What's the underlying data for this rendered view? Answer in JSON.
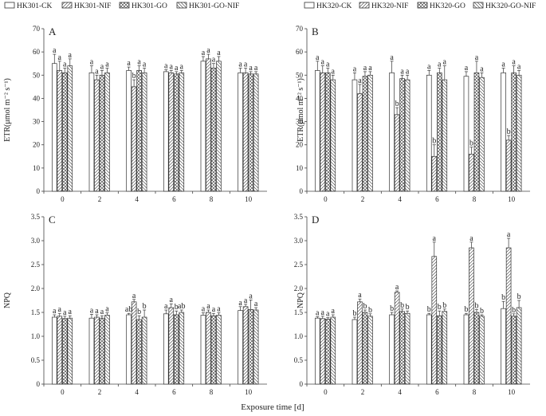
{
  "x_title": "Exposure time [d]",
  "legends": [
    [
      "HK301-CK",
      "HK301-NIF",
      "HK301-GO",
      "HK301-GO-NIF"
    ],
    [
      "HK320-CK",
      "HK320-NIF",
      "HK320-GO",
      "HK320-GO-NIF"
    ]
  ],
  "chart_data": [
    {
      "type": "bar",
      "panel": "A",
      "ylabel": "ETR(μmol m⁻² s⁻¹)",
      "categories": [
        "0",
        "2",
        "4",
        "6",
        "8",
        "10"
      ],
      "ylim": [
        0,
        70
      ],
      "yticks": [
        0,
        10,
        20,
        30,
        40,
        50,
        60,
        70
      ],
      "series": [
        {
          "name": "HK301-CK",
          "values": [
            55,
            51,
            52,
            51.5,
            56,
            51
          ],
          "err": [
            4,
            3,
            1.5,
            0.8,
            2,
            2
          ],
          "letters": [
            "a",
            "a",
            "a",
            "a",
            "a",
            "a"
          ]
        },
        {
          "name": "HK301-NIF",
          "values": [
            52,
            48,
            45,
            51,
            57,
            51
          ],
          "err": [
            4,
            2,
            3,
            1,
            2,
            2
          ],
          "letters": [
            "a",
            "a",
            "b",
            "a",
            "a",
            "a"
          ]
        },
        {
          "name": "HK301-GO",
          "values": [
            51,
            50,
            52,
            50.5,
            53,
            50.5
          ],
          "err": [
            2,
            2,
            2,
            1,
            2,
            1
          ],
          "letters": [
            "a",
            "a",
            "a",
            "a",
            "a",
            "a"
          ]
        },
        {
          "name": "HK301-GO-NIF",
          "values": [
            54,
            51,
            51,
            51,
            56,
            50.5
          ],
          "err": [
            3,
            2,
            2,
            1,
            2,
            1
          ],
          "letters": [
            "a",
            "a",
            "a",
            "a",
            "a",
            "a"
          ]
        }
      ]
    },
    {
      "type": "bar",
      "panel": "B",
      "ylabel": "ETR(μmol m⁻² s⁻¹)",
      "categories": [
        "0",
        "2",
        "4",
        "6",
        "8",
        "10"
      ],
      "ylim": [
        0,
        70
      ],
      "yticks": [
        0,
        10,
        20,
        30,
        40,
        50,
        60,
        70
      ],
      "series": [
        {
          "name": "HK320-CK",
          "values": [
            52,
            48,
            51,
            50,
            49.5,
            51
          ],
          "err": [
            4,
            3,
            5,
            2,
            2,
            2
          ],
          "letters": [
            "a",
            "a",
            "a",
            "a",
            "a",
            "a"
          ]
        },
        {
          "name": "HK320-NIF",
          "values": [
            51,
            42,
            33,
            15,
            16,
            22
          ],
          "err": [
            3,
            4,
            3,
            5,
            3,
            2
          ],
          "letters": [
            "a",
            "a",
            "b",
            "b",
            "b",
            "b"
          ]
        },
        {
          "name": "HK320-GO",
          "values": [
            51,
            49.5,
            48.5,
            51,
            51,
            51
          ],
          "err": [
            2,
            2,
            1.5,
            2,
            5,
            3
          ],
          "letters": [
            "a",
            "a",
            "a",
            "a",
            "a",
            "a"
          ]
        },
        {
          "name": "HK320-GO-NIF",
          "values": [
            48,
            50,
            48,
            48,
            49,
            50
          ],
          "err": [
            2,
            1.5,
            2,
            6,
            2,
            2
          ],
          "letters": [
            "a",
            "a",
            "a",
            "a",
            "a",
            "a"
          ]
        }
      ]
    },
    {
      "type": "bar",
      "panel": "C",
      "ylabel": "NPQ",
      "categories": [
        "0",
        "2",
        "4",
        "6",
        "8",
        "10"
      ],
      "ylim": [
        0,
        3.5
      ],
      "yticks": [
        0,
        0.5,
        1.0,
        1.5,
        2.0,
        2.5,
        3.0,
        3.5
      ],
      "series": [
        {
          "name": "HK301-CK",
          "values": [
            1.4,
            1.38,
            1.45,
            1.47,
            1.44,
            1.54
          ],
          "err": [
            0.05,
            0.08,
            0.03,
            0.08,
            0.05,
            0.08
          ],
          "letters": [
            "a",
            "a",
            "ab",
            "a",
            "a",
            "a"
          ]
        },
        {
          "name": "HK301-NIF",
          "values": [
            1.42,
            1.4,
            1.72,
            1.6,
            1.5,
            1.62
          ],
          "err": [
            0.06,
            0.05,
            0.05,
            0.08,
            0.05,
            0.05
          ],
          "letters": [
            "a",
            "a",
            "a",
            "a",
            "a",
            "a"
          ]
        },
        {
          "name": "HK301-GO",
          "values": [
            1.37,
            1.38,
            1.35,
            1.45,
            1.43,
            1.56
          ],
          "err": [
            0.05,
            0.05,
            0.08,
            0.08,
            0.05,
            0.2
          ],
          "letters": [
            "a",
            "a",
            "b",
            "b",
            "a",
            "a"
          ]
        },
        {
          "name": "HK301-GO-NIF",
          "values": [
            1.38,
            1.44,
            1.4,
            1.5,
            1.44,
            1.55
          ],
          "err": [
            0.05,
            0.05,
            0.15,
            0.05,
            0.05,
            0.05
          ],
          "letters": [
            "a",
            "a",
            "b",
            "ab",
            "a",
            "a"
          ]
        }
      ]
    },
    {
      "type": "bar",
      "panel": "D",
      "ylabel": "NPQ",
      "categories": [
        "0",
        "2",
        "4",
        "6",
        "8",
        "10"
      ],
      "ylim": [
        0,
        3.5
      ],
      "yticks": [
        0,
        0.5,
        1.0,
        1.5,
        2.0,
        2.5,
        3.0,
        3.5
      ],
      "series": [
        {
          "name": "HK320-CK",
          "values": [
            1.38,
            1.35,
            1.45,
            1.45,
            1.45,
            1.58
          ],
          "err": [
            0.03,
            0.05,
            0.05,
            0.03,
            0.03,
            0.15
          ],
          "letters": [
            "a",
            "b",
            "b",
            "b",
            "b",
            "b"
          ]
        },
        {
          "name": "HK320-NIF",
          "values": [
            1.37,
            1.72,
            1.92,
            2.67,
            2.85,
            2.85
          ],
          "err": [
            0.05,
            0.06,
            0.03,
            0.3,
            0.12,
            0.2
          ],
          "letters": [
            "a",
            "a",
            "a",
            "a",
            "a",
            "a"
          ]
        },
        {
          "name": "HK320-GO",
          "values": [
            1.36,
            1.5,
            1.52,
            1.43,
            1.5,
            1.42
          ],
          "err": [
            0.03,
            0.05,
            0.05,
            0.1,
            0.06,
            0.05
          ],
          "letters": [
            "a",
            "b",
            "b",
            "b",
            "b",
            "b"
          ]
        },
        {
          "name": "HK320-GO-NIF",
          "values": [
            1.4,
            1.42,
            1.48,
            1.52,
            1.42,
            1.6
          ],
          "err": [
            0.05,
            0.05,
            0.05,
            0.05,
            0.03,
            0.15
          ],
          "letters": [
            "a",
            "b",
            "b",
            "b",
            "b",
            "b"
          ]
        }
      ]
    }
  ]
}
